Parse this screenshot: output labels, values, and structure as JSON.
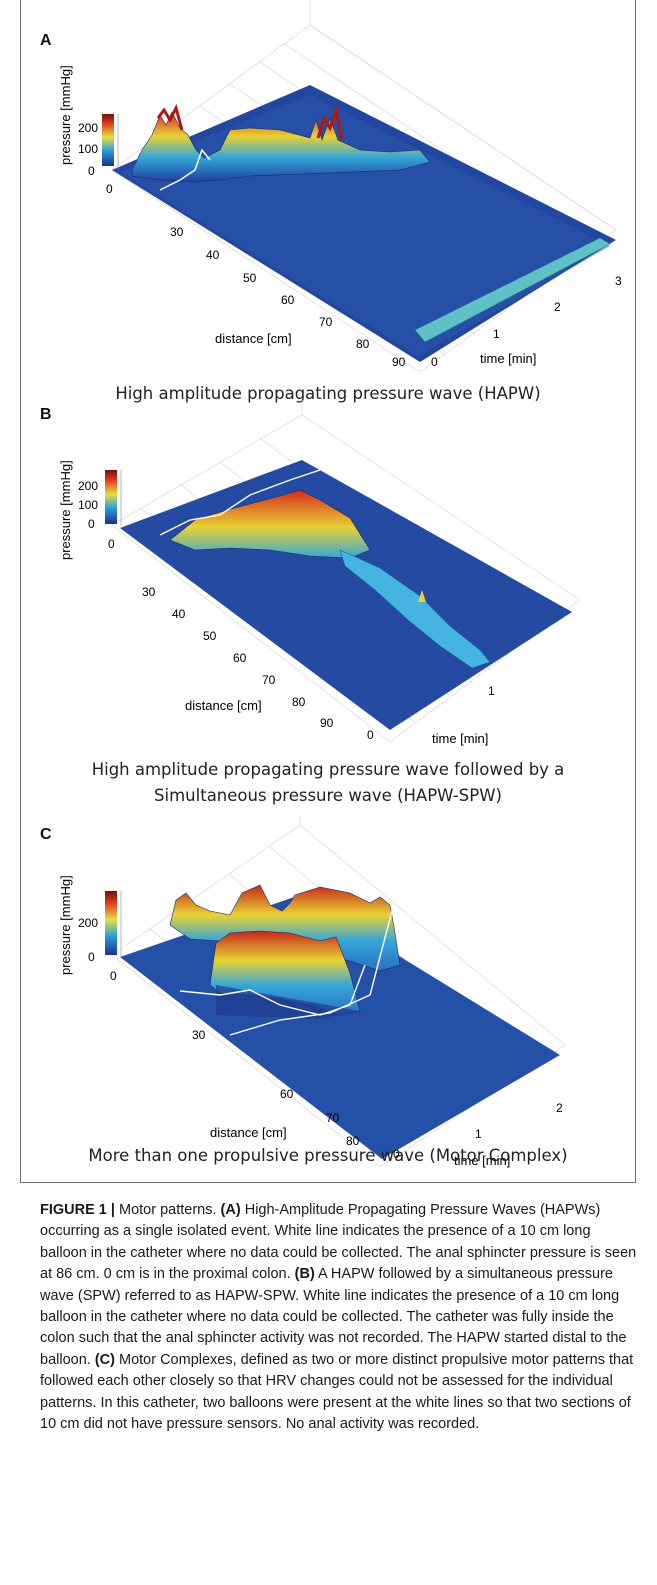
{
  "panels": [
    {
      "letter": "A",
      "caption": "High amplitude propagating pressure wave (HAPW)",
      "zlabel": "pressure [mmHg]",
      "zticks": [
        "200",
        "100",
        "0"
      ],
      "xlabel": "distance [cm]",
      "xticks": [
        "0",
        "30",
        "40",
        "50",
        "60",
        "70",
        "80",
        "90"
      ],
      "ylabel": "time [min]",
      "yticks": [
        "0",
        "1",
        "2",
        "3"
      ]
    },
    {
      "letter": "B",
      "caption_lines": [
        "High amplitude propagating pressure wave followed by a",
        "Simultaneous pressure wave (HAPW-SPW)"
      ],
      "zlabel": "pressure [mmHg]",
      "zticks": [
        "200",
        "100",
        "0"
      ],
      "xlabel": "distance [cm]",
      "xticks": [
        "0",
        "30",
        "40",
        "50",
        "60",
        "70",
        "80",
        "90"
      ],
      "ylabel": "time [min]",
      "yticks": [
        "0",
        "1"
      ]
    },
    {
      "letter": "C",
      "caption": "More than one propulsive pressure wave (Motor Complex)",
      "zlabel": "pressure [mmHg]",
      "zticks": [
        "200",
        "0"
      ],
      "xlabel": "distance [cm]",
      "xticks": [
        "0",
        "30",
        "60",
        "70",
        "80"
      ],
      "ylabel": "time [min]",
      "yticks": [
        "0",
        "1",
        "2"
      ]
    }
  ],
  "figure_caption": {
    "label": "FIGURE 1 |",
    "intro": " Motor patterns. ",
    "a_label": "(A)",
    "a_text": " High-Amplitude Propagating Pressure Waves (HAPWs) occurring as a single isolated event. White line indicates the presence of a 10 cm long balloon in the catheter where no data could be collected. The anal sphincter pressure is seen at 86 cm. 0 cm is in the proximal colon. ",
    "b_label": "(B)",
    "b_text": " A HAPW followed by a simultaneous pressure wave (SPW) referred to as HAPW-SPW. White line indicates the presence of a 10 cm long balloon in the catheter where no data could be collected. The catheter was fully inside the colon such that the anal sphincter activity was not recorded. The HAPW started distal to the balloon. ",
    "c_label": "(C)",
    "c_text": " Motor Complexes, defined as two or more distinct propulsive motor patterns that followed each other closely so that HRV changes could not be assessed for the individual patterns. In this catheter, two balloons were present at the white lines so that two sections of 10 cm did not have pressure sensors. No anal activity was recorded."
  },
  "colors": {
    "surface_low": "#1f3f9e",
    "surface_mid": "#35a6d9",
    "surface_high": "#e8d234",
    "surface_peak": "#d62a1e",
    "balloon_line": "#ffffff",
    "frame": "#6b6b6b"
  }
}
